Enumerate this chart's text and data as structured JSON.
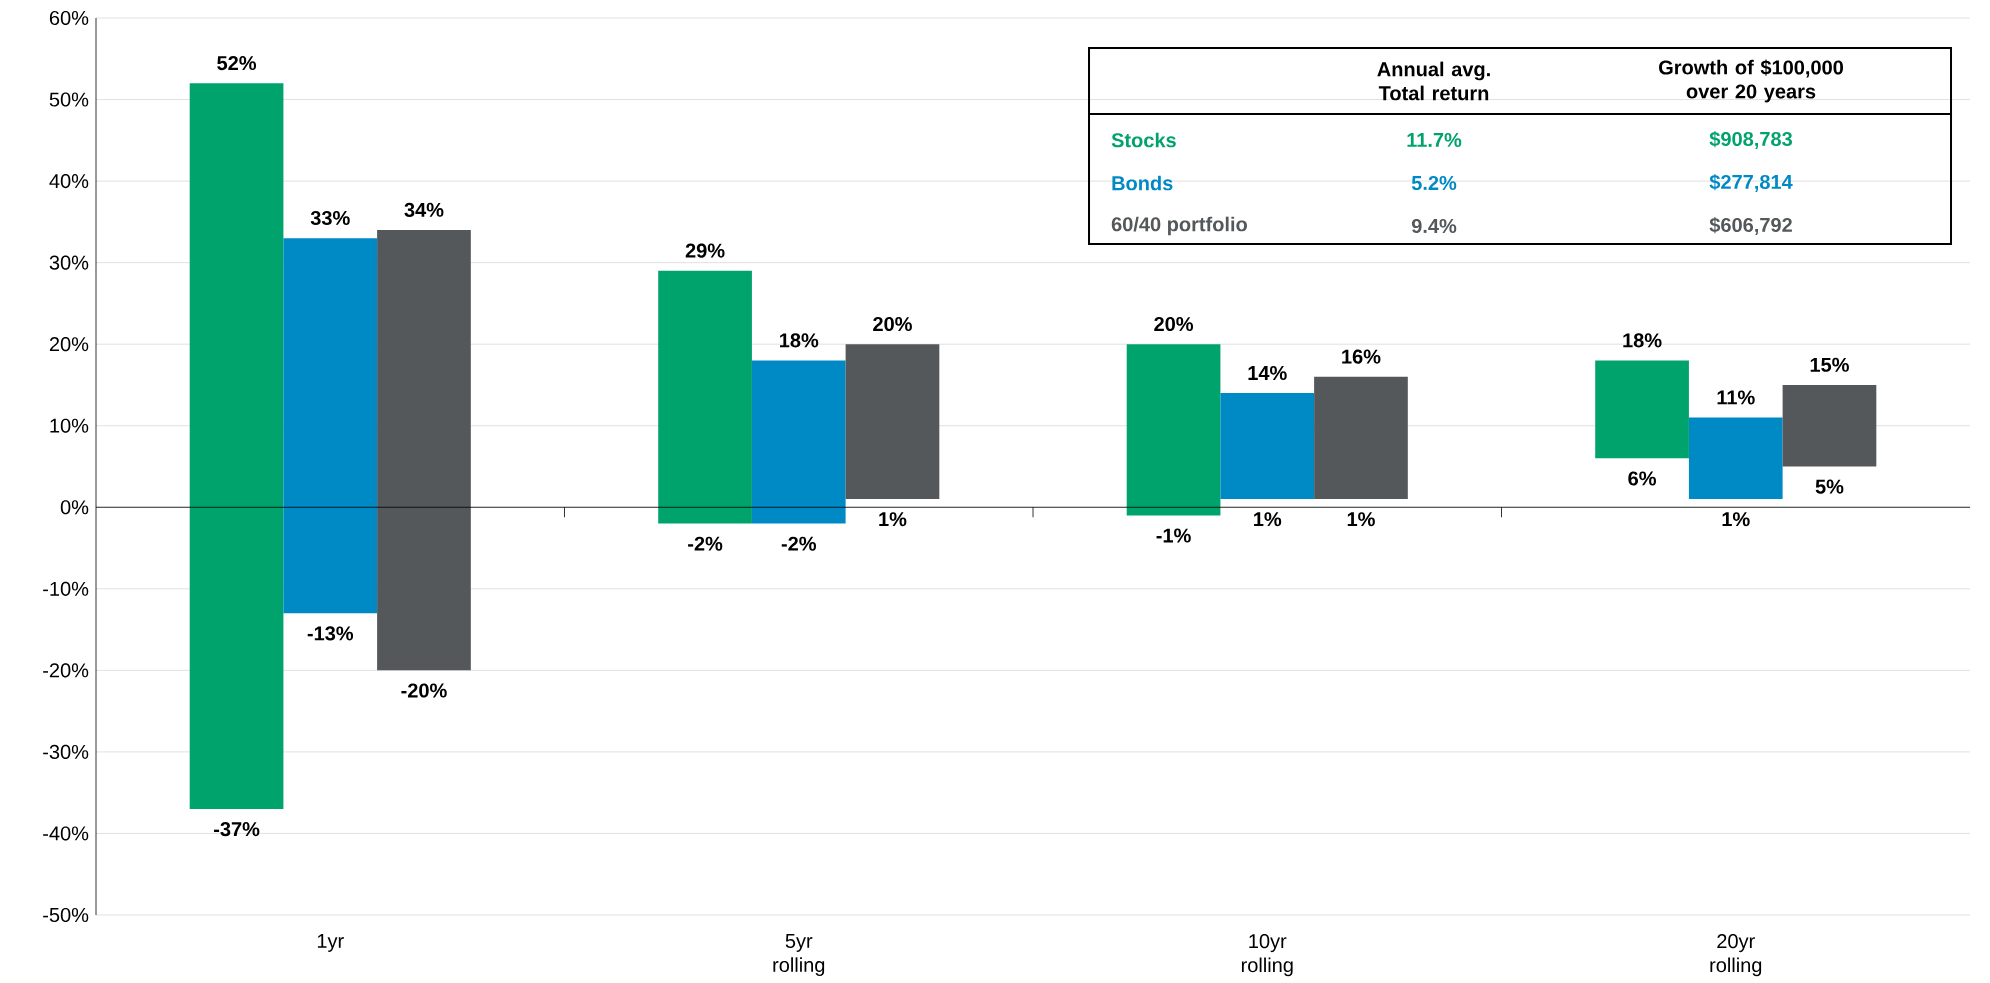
{
  "chart_data": {
    "type": "bar",
    "categories": [
      "1yr",
      "5yr rolling",
      "10yr rolling",
      "20yr rolling"
    ],
    "series": [
      {
        "name": "Stocks",
        "color": "#00a36c",
        "base": [
          -37,
          -2,
          -1,
          6
        ],
        "values": [
          89,
          31,
          21,
          12
        ]
      },
      {
        "name": "Bonds",
        "color": "#008ac5",
        "base": [
          -13,
          -2,
          1,
          1
        ],
        "values": [
          46,
          20,
          13,
          10
        ]
      },
      {
        "name": "60/40 portfolio",
        "color": "#54585a",
        "base": [
          -20,
          1,
          1,
          5
        ],
        "values": [
          54,
          19,
          15,
          10
        ]
      }
    ],
    "ylim": [
      -50,
      60
    ],
    "yticks": [
      {
        "value": -50,
        "label": "-50%"
      },
      {
        "value": -40,
        "label": "-40%"
      },
      {
        "value": -30,
        "label": "-30%"
      },
      {
        "value": -20,
        "label": "-20%"
      },
      {
        "value": -10,
        "label": "-10%"
      },
      {
        "value": 0,
        "label": "0%"
      },
      {
        "value": 10,
        "label": "10%"
      },
      {
        "value": 20,
        "label": "20%"
      },
      {
        "value": 30,
        "label": "30%"
      },
      {
        "value": 40,
        "label": "40%"
      },
      {
        "value": 50,
        "label": "50%"
      },
      {
        "value": 60,
        "label": "60%"
      }
    ],
    "grid": "y",
    "annotations": [
      "Annual avg. Total return",
      "Growth of $100,000 over 20 years",
      "11.7%",
      "$908,783",
      "5.2%",
      "$277,814",
      "9.4%",
      "$606,792",
      "52%",
      "-37%",
      "33%",
      "-13%",
      "34%",
      "-20%",
      "29%",
      "-2%",
      "18%",
      "-2%",
      "20%",
      "1%",
      "20%",
      "-1%",
      "14%",
      "1%",
      "16%",
      "1%",
      "18%",
      "6%",
      "11%",
      "1%",
      "15%",
      "5%"
    ]
  }
}
